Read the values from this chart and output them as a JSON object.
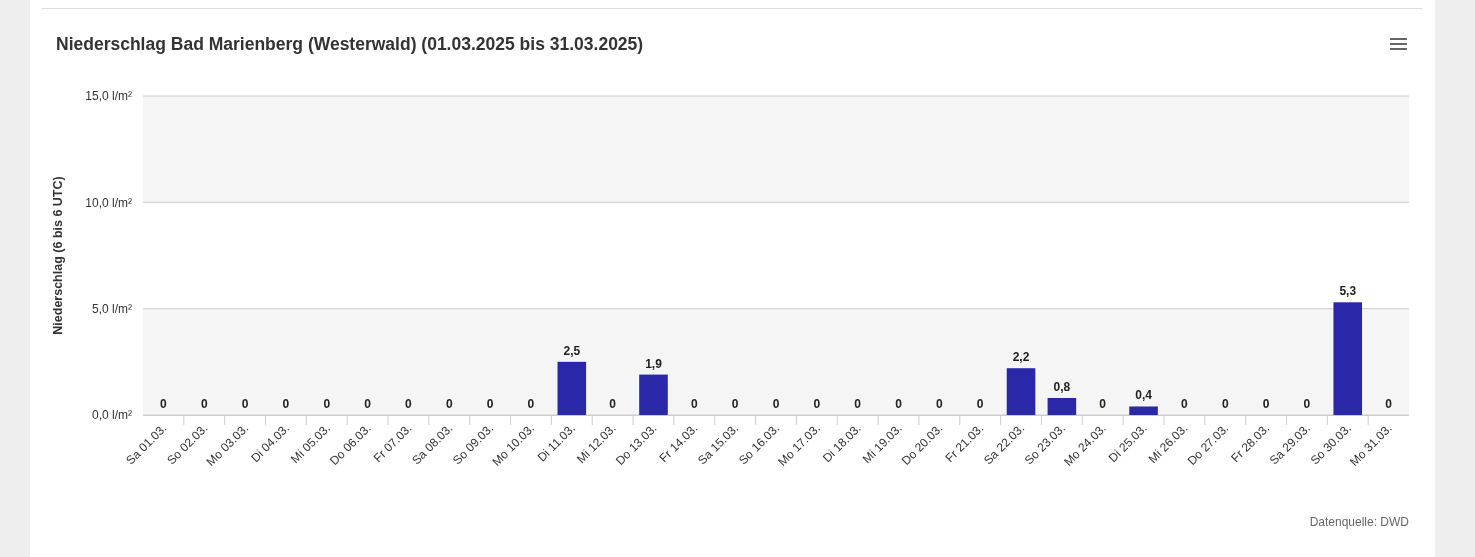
{
  "chart_data": {
    "type": "bar",
    "title": "Niederschlag Bad Marienberg (Westerwald) (01.03.2025 bis 31.03.2025)",
    "ylabel": "Niederschlag (6 bis 6 UTC)",
    "categories": [
      "Sa 01.03.",
      "So 02.03.",
      "Mo 03.03.",
      "Di 04.03.",
      "Mi 05.03.",
      "Do 06.03.",
      "Fr 07.03.",
      "Sa 08.03.",
      "So 09.03.",
      "Mo 10.03.",
      "Di 11.03.",
      "Mi 12.03.",
      "Do 13.03.",
      "Fr 14.03.",
      "Sa 15.03.",
      "So 16.03.",
      "Mo 17.03.",
      "Di 18.03.",
      "Mi 19.03.",
      "Do 20.03.",
      "Fr 21.03.",
      "Sa 22.03.",
      "So 23.03.",
      "Mo 24.03.",
      "Di 25.03.",
      "Mi 26.03.",
      "Do 27.03.",
      "Fr 28.03.",
      "Sa 29.03.",
      "So 30.03.",
      "Mo 31.03."
    ],
    "values": [
      0,
      0,
      0,
      0,
      0,
      0,
      0,
      0,
      0,
      0,
      2.5,
      0,
      1.9,
      0,
      0,
      0,
      0,
      0,
      0,
      0,
      0,
      2.2,
      0.8,
      0,
      0.4,
      0,
      0,
      0,
      0,
      5.3,
      0
    ],
    "value_labels": [
      "0",
      "0",
      "0",
      "0",
      "0",
      "0",
      "0",
      "0",
      "0",
      "0",
      "2,5",
      "0",
      "1,9",
      "0",
      "0",
      "0",
      "0",
      "0",
      "0",
      "0",
      "0",
      "2,2",
      "0,8",
      "0",
      "0,4",
      "0",
      "0",
      "0",
      "0",
      "5,3",
      "0"
    ],
    "color": "#2a27a8",
    "ylim": [
      0,
      15
    ],
    "yticks": [
      {
        "value": 0,
        "label": "0,0 l/m²"
      },
      {
        "value": 5,
        "label": "5,0 l/m²"
      },
      {
        "value": 10,
        "label": "10,0 l/m²"
      },
      {
        "value": 15,
        "label": "15,0 l/m²"
      }
    ],
    "grid": "y",
    "bands": [
      {
        "axis": "y",
        "from": 0,
        "to": 5,
        "color": "#f5f5f5"
      },
      {
        "axis": "y",
        "from": 10,
        "to": 15,
        "color": "#f5f5f5"
      }
    ],
    "annotations": [
      "Datenquelle: DWD"
    ]
  }
}
